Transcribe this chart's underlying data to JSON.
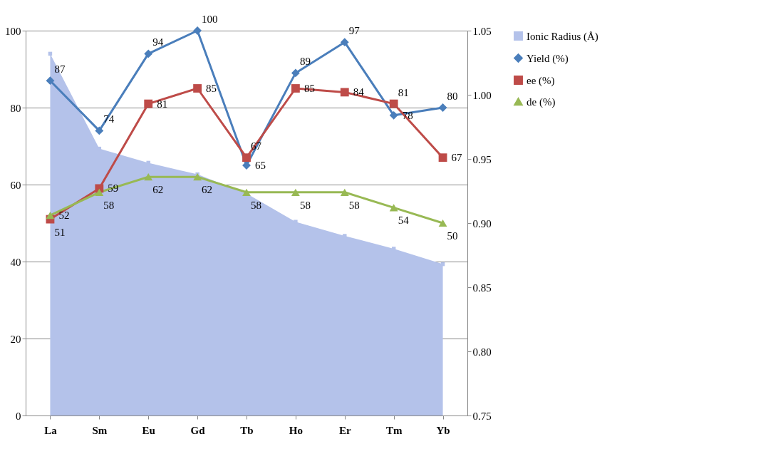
{
  "chart_data": {
    "type": "line",
    "categories": [
      "La",
      "Sm",
      "Eu",
      "Gd",
      "Tb",
      "Ho",
      "Er",
      "Tm",
      "Yb"
    ],
    "series": [
      {
        "name": "Ionic Radius (Å)",
        "type": "area",
        "axis": "y2",
        "color": "#b4c2ea",
        "values": [
          1.032,
          0.958,
          0.947,
          0.938,
          0.923,
          0.901,
          0.89,
          0.88,
          0.868
        ]
      },
      {
        "name": "Yield (%)",
        "color": "#4a7ebb",
        "marker": "diamond",
        "values": [
          87,
          74,
          94,
          100,
          65,
          89,
          97,
          78,
          80
        ],
        "value_labels": [
          "87",
          "74",
          "94",
          "100",
          "65",
          "89",
          "97",
          "78",
          "80"
        ]
      },
      {
        "name": "ee (%)",
        "color": "#be4b48",
        "marker": "square",
        "values": [
          51,
          59,
          81,
          85,
          67,
          85,
          84,
          81,
          67
        ],
        "value_labels": [
          "51",
          "59",
          "81",
          "85",
          "67",
          "85",
          "84",
          "81",
          "67"
        ]
      },
      {
        "name": "de (%)",
        "color": "#98b954",
        "marker": "triangle",
        "values": [
          52,
          58,
          62,
          62,
          58,
          58,
          58,
          54,
          50
        ],
        "value_labels": [
          "52",
          "58",
          "62",
          "62",
          "58",
          "58",
          "58",
          "54",
          "50"
        ]
      }
    ],
    "ylim": [
      0,
      100
    ],
    "yticks": [
      0,
      20,
      40,
      60,
      80,
      100
    ],
    "y2lim": [
      0.75,
      1.05
    ],
    "y2ticks": [
      0.75,
      {
        "value": 0.8,
        "label": "0.80"
      },
      0.85,
      {
        "value": 0.9,
        "label": "0.90"
      },
      0.95,
      {
        "value": 1,
        "label": "1.00"
      },
      1.05
    ],
    "grid": "y",
    "legend": "right"
  }
}
